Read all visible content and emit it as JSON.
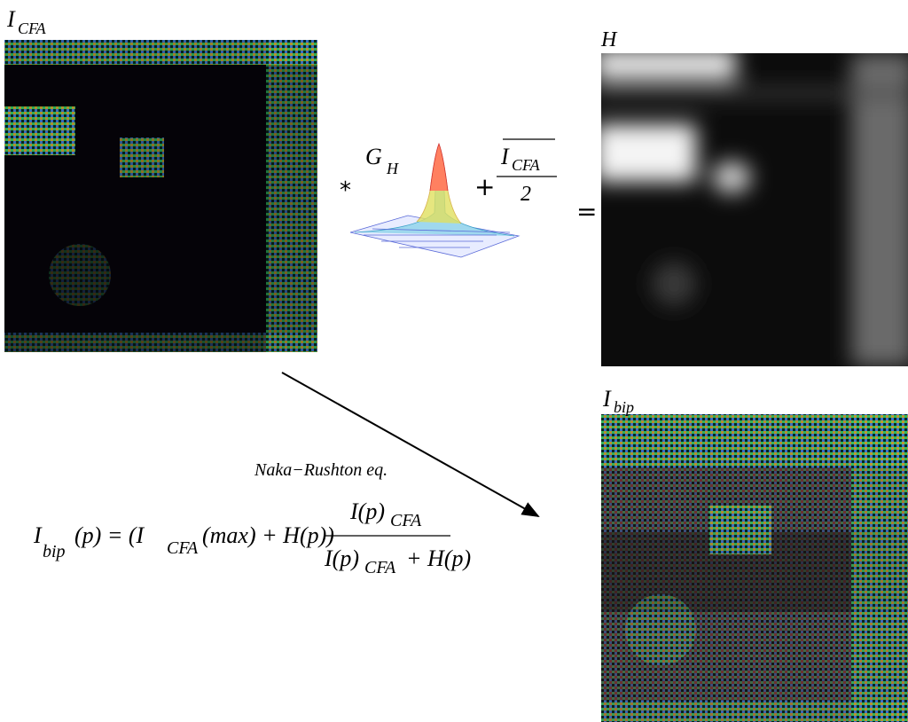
{
  "labels": {
    "icfa": {
      "main": "I",
      "sub": "CFA"
    },
    "h": "H",
    "ibip": {
      "main": "I",
      "sub": "bip"
    }
  },
  "operators": {
    "convolve": "*",
    "plus": "+",
    "equals": "="
  },
  "kernel": {
    "main": "G",
    "sub": "H"
  },
  "fraction": {
    "numerator": {
      "main": "I",
      "sub": "CFA"
    },
    "denominator": "2"
  },
  "arrow_label": "Naka−Rushton eq.",
  "equation": {
    "lhs_main": "I",
    "lhs_sub": "bip",
    "lhs_rest": "(p) = (I",
    "cfa_sub": "CFA",
    "rest": "(max) + H(p))",
    "num_main": "I(p)",
    "num_sub": "CFA",
    "den_main": "I(p)",
    "den_sub": "CFA",
    "den_rest": "+ H(p)"
  }
}
